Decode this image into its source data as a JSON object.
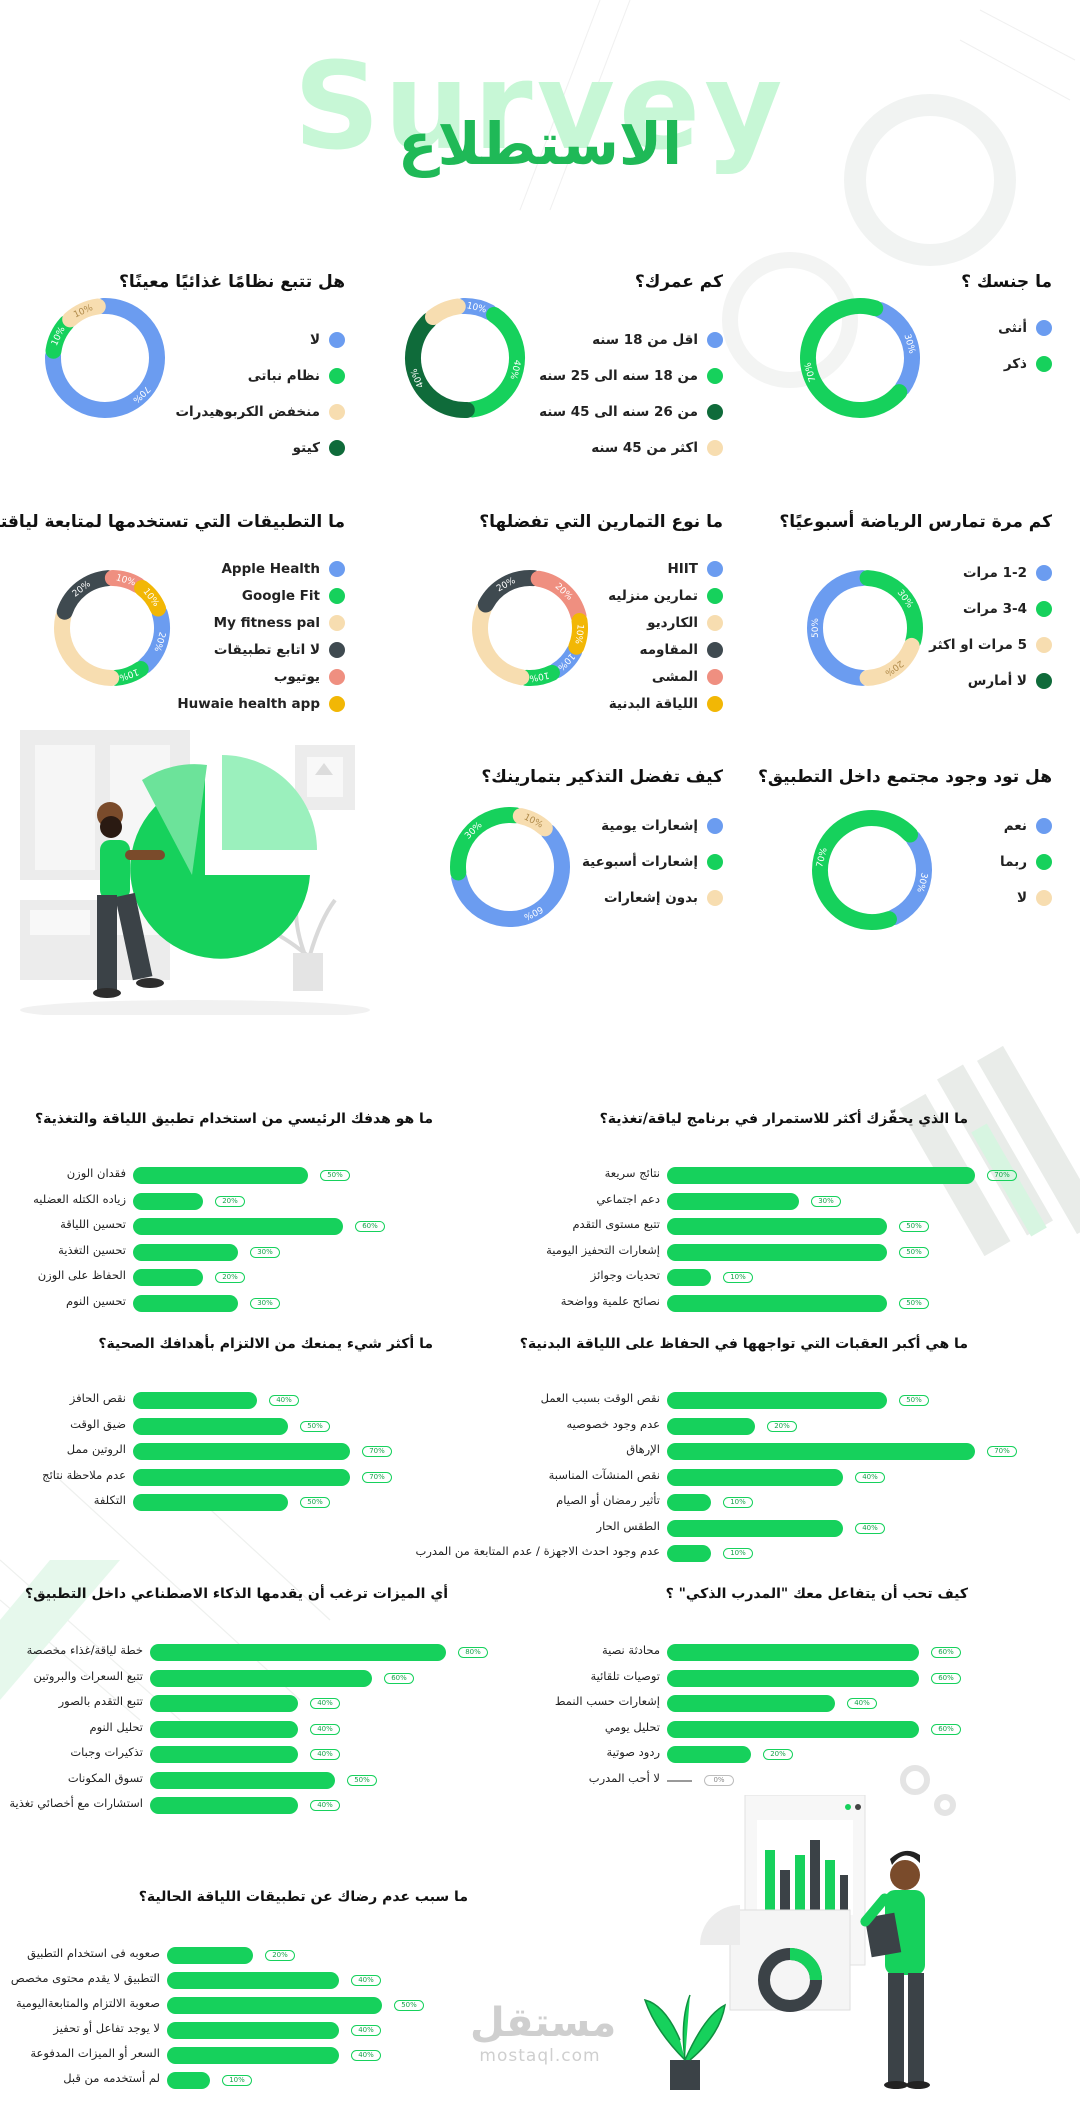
{
  "header": {
    "title_en": "Survey",
    "title_ar": "الاستطلاع"
  },
  "colors": {
    "green": "#16d15c",
    "dark_green": "#0f6b3a",
    "blue": "#6b9cf0",
    "beige": "#f7ddb0",
    "charcoal": "#3f4a50",
    "salmon": "#ef8f80",
    "yellow": "#f2b705",
    "light_green": "#c7f7d6"
  },
  "donuts": [
    {
      "id": "gender",
      "question": "ما جنسك ؟",
      "legend": [
        {
          "label": "أنثى",
          "color": "#6b9cf0"
        },
        {
          "label": "ذكر",
          "color": "#16d15c"
        }
      ],
      "chart_data": {
        "type": "pie",
        "labels": [
          "أنثى",
          "ذكر"
        ],
        "values": [
          30,
          70
        ],
        "slice_labels": [
          "30%",
          "70%"
        ]
      }
    },
    {
      "id": "age",
      "question": "كم عمرك؟",
      "legend": [
        {
          "label": "اقل من 18 سنه",
          "color": "#6b9cf0"
        },
        {
          "label": "من 18 سنه الى 25 سنه",
          "color": "#16d15c"
        },
        {
          "label": "من 26 سنه الى 45 سنه",
          "color": "#0f6b3a"
        },
        {
          "label": "اكثر من 45 سنه",
          "color": "#f7ddb0"
        }
      ],
      "chart_data": {
        "type": "pie",
        "labels": [
          "اقل من 18 سنه",
          "من 18 سنه الى 25 سنه",
          "من 26 سنه الى 45 سنه",
          "اكثر من 45 سنه"
        ],
        "values": [
          10,
          40,
          40,
          10
        ],
        "slice_labels": [
          "10%",
          "40%",
          "40%",
          ""
        ]
      }
    },
    {
      "id": "diet",
      "question": "هل تتبع نظامًا غذائيًا معينًا؟",
      "legend": [
        {
          "label": "لا",
          "color": "#6b9cf0"
        },
        {
          "label": "نظام نباتى",
          "color": "#16d15c"
        },
        {
          "label": "منخفض الكربوهيدرات",
          "color": "#f7ddb0"
        },
        {
          "label": "كيتو",
          "color": "#0f6b3a"
        }
      ],
      "chart_data": {
        "type": "pie",
        "labels": [
          "لا",
          "نظام نباتى",
          "منخفض الكربوهيدرات",
          "كيتو"
        ],
        "values": [
          70,
          10,
          10,
          0
        ],
        "slice_labels": [
          "70%",
          "10%",
          "10%",
          ""
        ]
      }
    },
    {
      "id": "exercise_freq",
      "question": "كم مرة تمارس الرياضة أسبوعيًا؟",
      "legend": [
        {
          "label": "1-2 مرات",
          "color": "#6b9cf0"
        },
        {
          "label": "3-4 مرات",
          "color": "#16d15c"
        },
        {
          "label": "5 مرات او اكثر",
          "color": "#f7ddb0"
        },
        {
          "label": "لا أمارس",
          "color": "#0f6b3a"
        }
      ],
      "chart_data": {
        "type": "pie",
        "labels": [
          "1-2 مرات",
          "3-4 مرات",
          "5 مرات او اكثر",
          "لا أمارس"
        ],
        "values": [
          50,
          30,
          20,
          0
        ],
        "slice_labels": [
          "50%",
          "30%",
          "20%",
          ""
        ]
      }
    },
    {
      "id": "workout_type",
      "question": "ما نوع التمارين التي تفضلها؟",
      "legend": [
        {
          "label": "HIIT",
          "color": "#6b9cf0"
        },
        {
          "label": "تمارين منزليه",
          "color": "#16d15c"
        },
        {
          "label": "الكارديو",
          "color": "#f7ddb0"
        },
        {
          "label": "المقاومه",
          "color": "#3f4a50"
        },
        {
          "label": "المشى",
          "color": "#ef8f80"
        },
        {
          "label": "اللياقة البدنية",
          "color": "#f2b705"
        }
      ],
      "chart_data": {
        "type": "pie",
        "labels": [
          "HIIT",
          "تمارين منزليه",
          "الكارديو",
          "المقاومه",
          "المشى",
          "اللياقة البدنية"
        ],
        "values": [
          10,
          10,
          30,
          20,
          20,
          10
        ],
        "slice_labels": [
          "10%",
          "10%",
          "",
          "20%",
          "20%",
          "10%"
        ]
      }
    },
    {
      "id": "apps",
      "question": "ما التطبيقات التي تستخدمها لمتابعة لياقتك؟",
      "legend": [
        {
          "label": "Apple Health",
          "color": "#6b9cf0"
        },
        {
          "label": "Google Fit",
          "color": "#16d15c"
        },
        {
          "label": "My fitness pal",
          "color": "#f7ddb0"
        },
        {
          "label": "لا اتابع تطبيقات",
          "color": "#3f4a50"
        },
        {
          "label": "يوتيوب",
          "color": "#ef8f80"
        },
        {
          "label": "Huwaie health app",
          "color": "#f2b705"
        }
      ],
      "chart_data": {
        "type": "pie",
        "labels": [
          "Apple Health",
          "Google Fit",
          "My fitness pal",
          "لا اتابع تطبيقات",
          "يوتيوب",
          "Huwaie health app"
        ],
        "values": [
          20,
          10,
          30,
          20,
          10,
          10
        ],
        "slice_labels": [
          "20%",
          "10%",
          "",
          "20%",
          "10%",
          "10%"
        ]
      }
    },
    {
      "id": "community",
      "question": "هل تود وجود مجتمع داخل التطبيق؟",
      "legend": [
        {
          "label": "نعم",
          "color": "#6b9cf0"
        },
        {
          "label": "ربما",
          "color": "#16d15c"
        },
        {
          "label": "لا",
          "color": "#f7ddb0"
        }
      ],
      "chart_data": {
        "type": "pie",
        "labels": [
          "نعم",
          "ربما",
          "لا"
        ],
        "values": [
          30,
          70,
          0
        ],
        "slice_labels": [
          "30%",
          "70%",
          ""
        ]
      }
    },
    {
      "id": "reminders",
      "question": "كيف تفضل التذكير بتمارينك؟",
      "legend": [
        {
          "label": "إشعارات يومية",
          "color": "#6b9cf0"
        },
        {
          "label": "إشعارات أسبوعية",
          "color": "#16d15c"
        },
        {
          "label": "بدون إشعارات",
          "color": "#f7ddb0"
        }
      ],
      "chart_data": {
        "type": "pie",
        "labels": [
          "إشعارات يومية",
          "إشعارات أسبوعية",
          "بدون إشعارات"
        ],
        "values": [
          60,
          30,
          10
        ],
        "slice_labels": [
          "60%",
          "30%",
          "10%"
        ]
      }
    }
  ],
  "bar_charts": [
    {
      "id": "motivation",
      "question": "ما الذي يحفّزك أكثر للاستمرار في برنامج لياقة/تغذية؟",
      "chart_data": {
        "type": "bar",
        "categories": [
          "نتائج سريعة",
          "دعم اجتماعي",
          "تتبع مستوى التقدم",
          "إشعارات التحفيز اليومية",
          "تحديات وجوائز",
          "نصائح علمية وواضحة"
        ],
        "values": [
          70,
          30,
          50,
          50,
          10,
          50
        ],
        "labels": [
          "70%",
          "30%",
          "50%",
          "50%",
          "10%",
          "50%"
        ]
      }
    },
    {
      "id": "goal",
      "question": "ما هو هدفك الرئيسي من استخدام تطبيق اللياقة والتغذية؟",
      "chart_data": {
        "type": "bar",
        "categories": [
          "فقدان الوزن",
          "زياده الكتله العضليه",
          "تحسين اللياقة",
          "تحسين التغذية",
          "الحفاظ على الوزن",
          "تحسين النوم"
        ],
        "values": [
          50,
          20,
          60,
          30,
          20,
          30
        ],
        "labels": [
          "50%",
          "20%",
          "60%",
          "30%",
          "20%",
          "30%"
        ]
      }
    },
    {
      "id": "obstacles",
      "question": "ما هي أكبر العقبات التي تواجهها في الحفاظ على اللياقة البدنية؟",
      "chart_data": {
        "type": "bar",
        "categories": [
          "نقص الوقت بسبب العمل",
          "عدم وجود خصوصيه",
          "الإرهاق",
          "نقص المنشآت المناسبة",
          "تأثير رمضان أو الصيام",
          "الطقس الحار",
          "عدم وجود احدث الاجهزة / عدم المتابعة من المدرب"
        ],
        "values": [
          50,
          20,
          70,
          40,
          10,
          40,
          10
        ],
        "labels": [
          "50%",
          "20%",
          "70%",
          "40%",
          "10%",
          "40%",
          "10%"
        ]
      }
    },
    {
      "id": "barriers",
      "question": "ما أكثر شيء يمنعك من الالتزام بأهدافك الصحية؟",
      "chart_data": {
        "type": "bar",
        "categories": [
          "نقص الحافز",
          "ضيق الوقت",
          "الروتين ممل",
          "عدم ملاحظة نتائج",
          "التكلفة"
        ],
        "values": [
          40,
          50,
          70,
          70,
          50
        ],
        "labels": [
          "40%",
          "50%",
          "70%",
          "70%",
          "50%"
        ]
      }
    },
    {
      "id": "coach",
      "question": "كيف تحب أن يتفاعل معك \"المدرب الذكي\" ؟",
      "chart_data": {
        "type": "bar",
        "categories": [
          "محادثة نصية",
          "توصيات تلقائية",
          "إشعارات حسب النمط",
          "تحليل يومي",
          "ردود صوتية",
          "لا أحب المدرب"
        ],
        "values": [
          60,
          60,
          40,
          60,
          20,
          0
        ],
        "labels": [
          "60%",
          "60%",
          "40%",
          "60%",
          "20%",
          "0%"
        ]
      }
    },
    {
      "id": "ai_features",
      "question": "أي الميزات ترغب أن يقدمها الذكاء الاصطناعي داخل التطبيق؟",
      "chart_data": {
        "type": "bar",
        "categories": [
          "خطة لياقة/غذاء مخصصة",
          "تتبع السعرات والبروتين",
          "تتبع التقدم بالصور",
          "تحليل النوم",
          "تذكيرات وجبات",
          "تسوق المكونات",
          "استشارات مع أخصائي تغذية"
        ],
        "values": [
          80,
          60,
          40,
          40,
          40,
          50,
          40
        ],
        "labels": [
          "80%",
          "60%",
          "40%",
          "40%",
          "40%",
          "50%",
          "40%"
        ]
      }
    },
    {
      "id": "dissatisfaction",
      "question": "ما سبب عدم رضاك عن تطبيقات اللياقة الحالية؟",
      "chart_data": {
        "type": "bar",
        "categories": [
          "صعوبه فى استخدام التطبيق",
          "التطبيق لا يقدم محتوى مخصص",
          "صعوبة الالتزام والمتابعةاليومية",
          "لا يوجد تفاعل أو تحفيز",
          "السعر أو الميزات المدفوعة",
          "لم أستخدمه من قبل"
        ],
        "values": [
          20,
          40,
          50,
          40,
          40,
          10
        ],
        "labels": [
          "20%",
          "40%",
          "50%",
          "40%",
          "40%",
          "10%"
        ]
      }
    }
  ],
  "watermark": {
    "ar": "مستقل",
    "en": "mostaql.com"
  }
}
